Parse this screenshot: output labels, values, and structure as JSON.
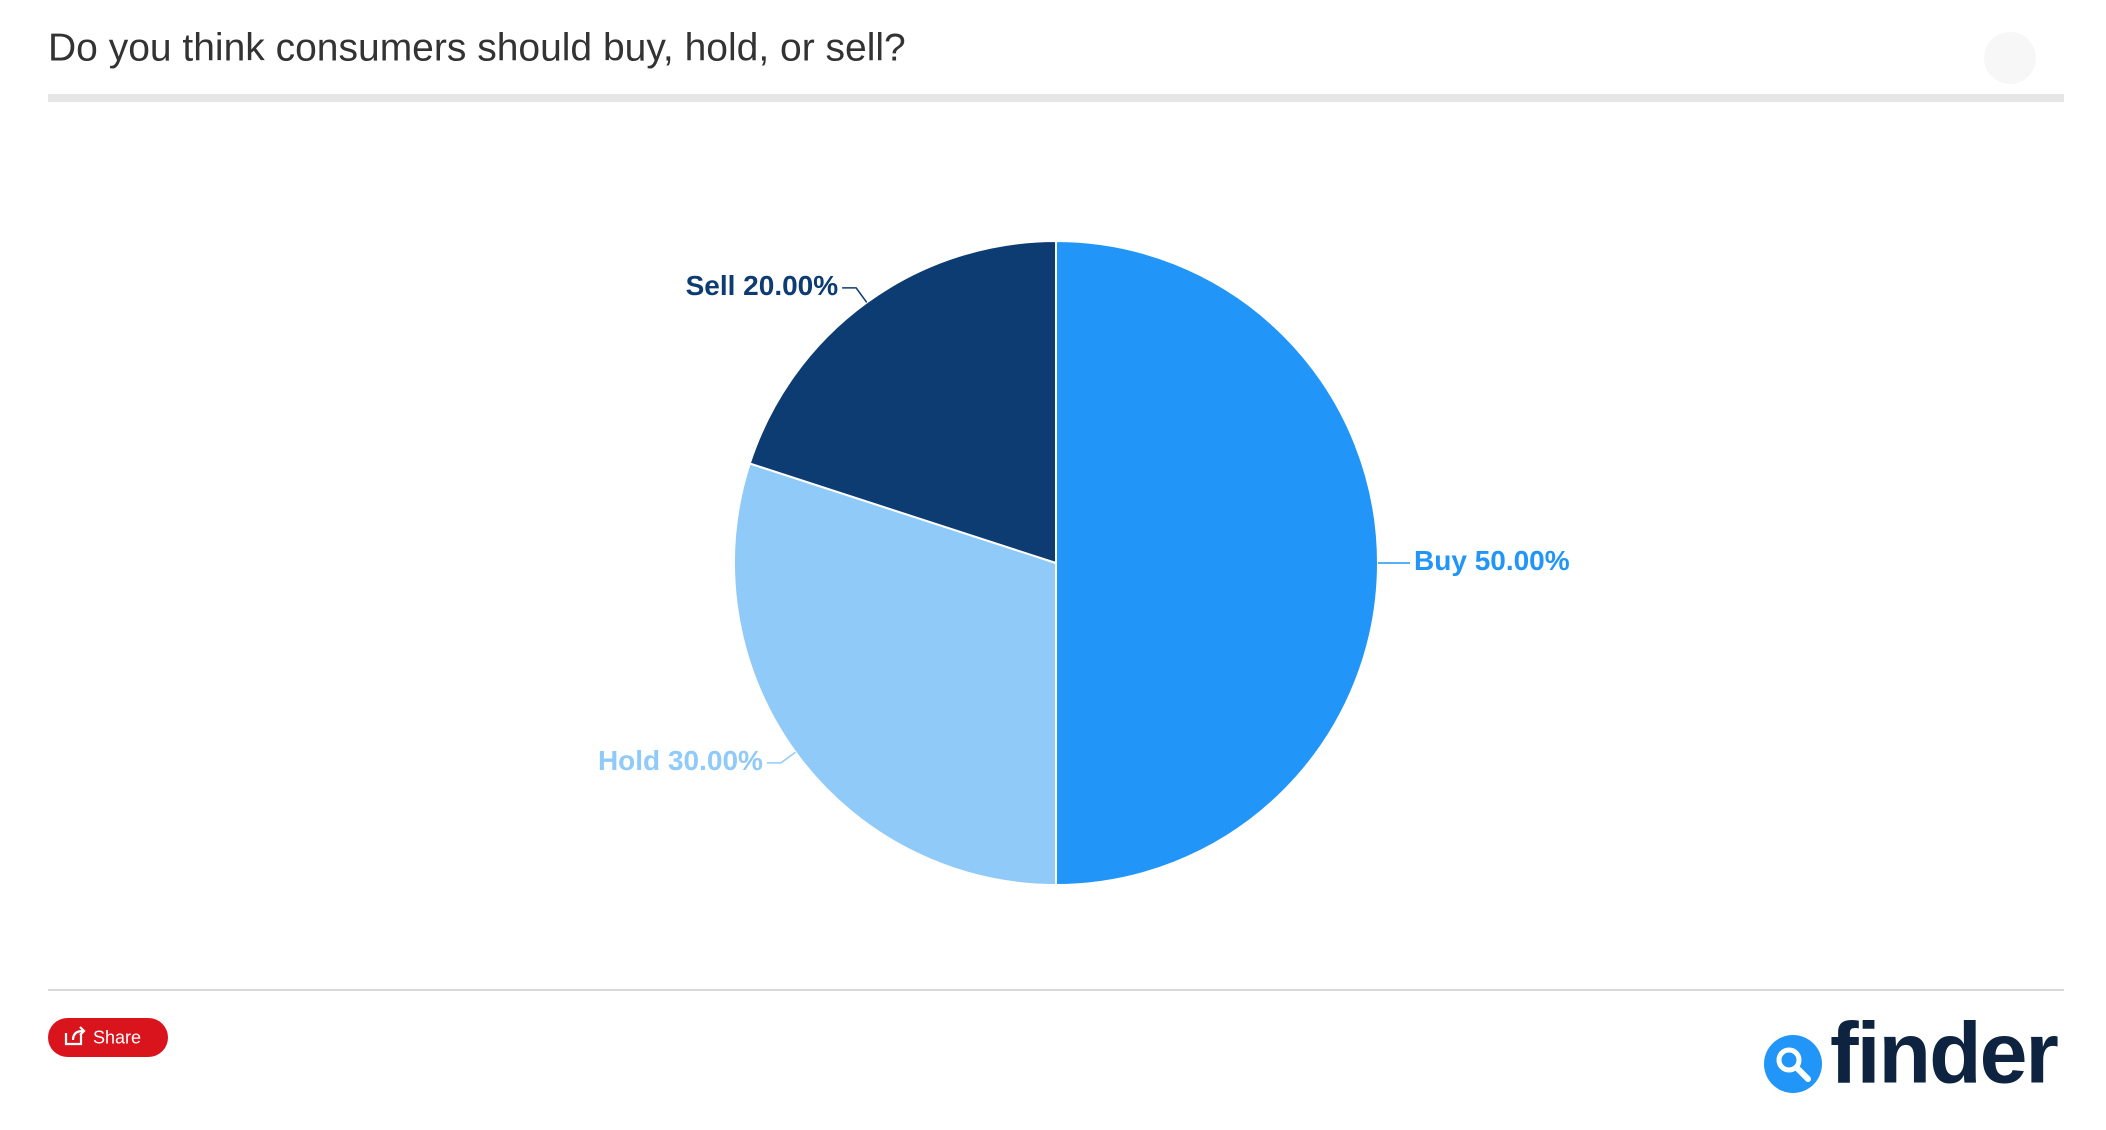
{
  "chart_data": {
    "type": "pie",
    "title": "Do you think consumers should buy, hold, or sell?",
    "categories": [
      "Buy",
      "Hold",
      "Sell"
    ],
    "values": [
      50,
      30,
      20
    ],
    "value_labels": [
      "50.00%",
      "30.00%",
      "20.00%"
    ],
    "colors": [
      "#2196f8",
      "#90caf9",
      "#0d3c73"
    ]
  },
  "share_label": "Share",
  "brand": "finder"
}
